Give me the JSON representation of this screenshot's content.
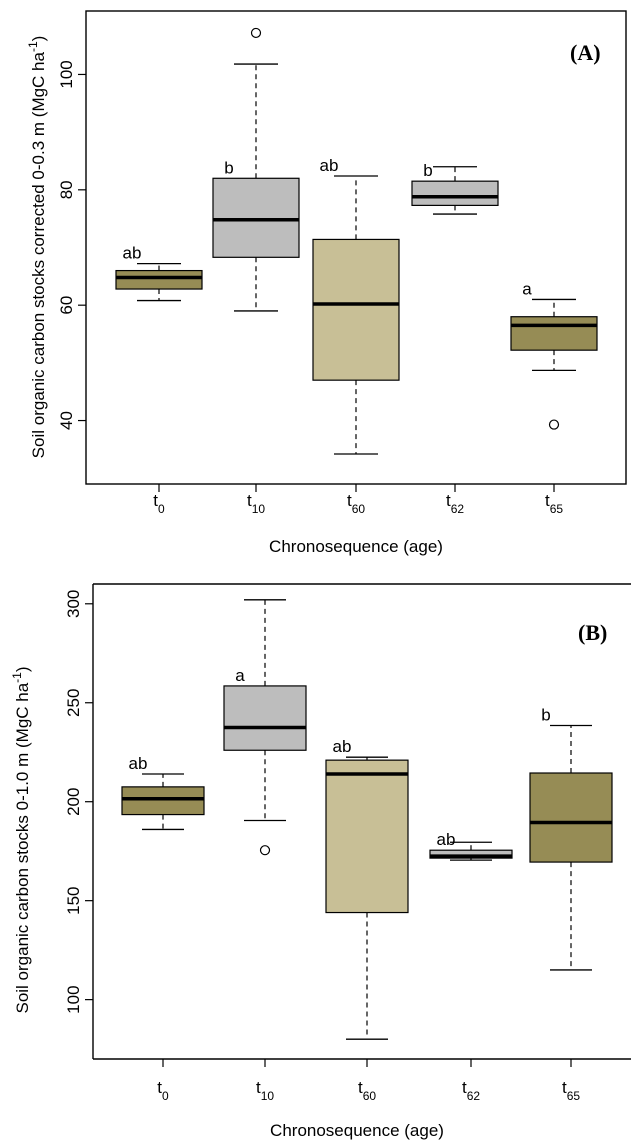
{
  "chart_data": [
    {
      "type": "box",
      "panel_label": "(A)",
      "ylabel": "Soil organic carbon stocks  corrected 0-0.3 m (MgC ha-1)",
      "xlabel": "Chronosequence (age)",
      "ylim": [
        29,
        111
      ],
      "yticks": [
        40,
        60,
        80,
        100
      ],
      "categories": [
        {
          "label": "t",
          "sub": "0"
        },
        {
          "label": "t",
          "sub": "10"
        },
        {
          "label": "t",
          "sub": "60"
        },
        {
          "label": "t",
          "sub": "62"
        },
        {
          "label": "t",
          "sub": "65"
        }
      ],
      "boxes": [
        {
          "min": 60.8,
          "q1": 62.8,
          "median": 64.8,
          "q3": 66.0,
          "max": 67.2,
          "outliers": [],
          "letter": "ab",
          "color": "#968c55"
        },
        {
          "min": 59.0,
          "q1": 68.3,
          "median": 74.8,
          "q3": 82.0,
          "max": 101.8,
          "outliers": [
            107.2
          ],
          "letter": "b",
          "color": "#bdbdbd"
        },
        {
          "min": 34.2,
          "q1": 47.0,
          "median": 60.2,
          "q3": 71.4,
          "max": 82.4,
          "outliers": [],
          "letter": "ab",
          "color": "#c8bf96"
        },
        {
          "min": 75.8,
          "q1": 77.3,
          "median": 78.8,
          "q3": 81.5,
          "max": 84.0,
          "outliers": [],
          "letter": "b",
          "color": "#bdbdbd"
        },
        {
          "min": 48.7,
          "q1": 52.2,
          "median": 56.5,
          "q3": 58.0,
          "max": 61.0,
          "outliers": [
            39.3
          ],
          "letter": "a",
          "color": "#968c55"
        }
      ]
    },
    {
      "type": "box",
      "panel_label": "(B)",
      "ylabel": "Soil organic carbon stocks 0-1.0 m (MgC ha-1)",
      "xlabel": "Chronosequence (age)",
      "ylim": [
        70,
        310
      ],
      "yticks": [
        100,
        150,
        200,
        250,
        300
      ],
      "categories": [
        {
          "label": "t",
          "sub": "0"
        },
        {
          "label": "t",
          "sub": "10"
        },
        {
          "label": "t",
          "sub": "60"
        },
        {
          "label": "t",
          "sub": "62"
        },
        {
          "label": "t",
          "sub": "65"
        }
      ],
      "boxes": [
        {
          "min": 186.0,
          "q1": 193.5,
          "median": 201.5,
          "q3": 207.5,
          "max": 214.0,
          "outliers": [],
          "letter": "ab",
          "color": "#968c55"
        },
        {
          "min": 190.5,
          "q1": 226.0,
          "median": 237.5,
          "q3": 258.5,
          "max": 302.0,
          "outliers": [
            175.5
          ],
          "letter": "a",
          "color": "#bdbdbd"
        },
        {
          "min": 80.0,
          "q1": 144.0,
          "median": 214.0,
          "q3": 221.0,
          "max": 222.5,
          "outliers": [],
          "letter": "ab",
          "color": "#c8bf96"
        },
        {
          "min": 170.5,
          "q1": 171.5,
          "median": 172.5,
          "q3": 175.5,
          "max": 179.5,
          "outliers": [],
          "letter": "ab",
          "color": "#bdbdbd"
        },
        {
          "min": 115.0,
          "q1": 169.5,
          "median": 189.5,
          "q3": 214.5,
          "max": 238.5,
          "outliers": [],
          "letter": "b",
          "color": "#968c55"
        }
      ]
    }
  ]
}
